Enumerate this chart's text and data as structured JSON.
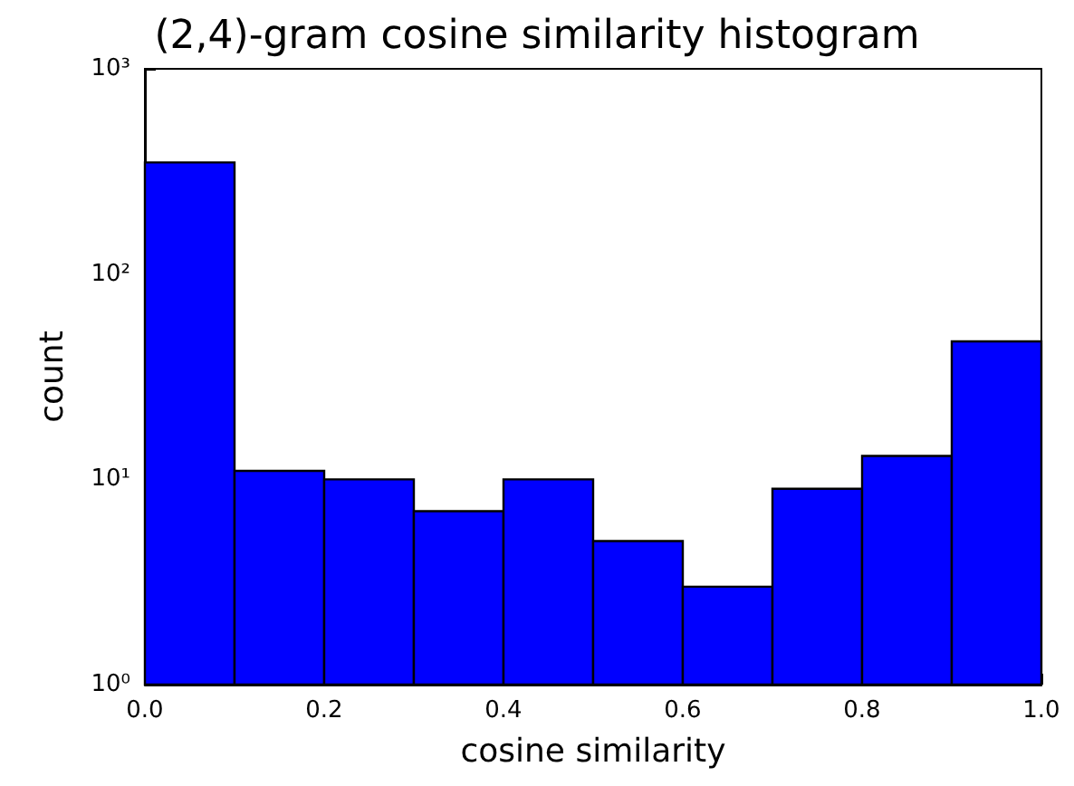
{
  "chart_data": {
    "type": "histogram",
    "title": "(2,4)-gram cosine similarity histogram",
    "xlabel": "cosine similarity",
    "ylabel": "count",
    "bins": [
      0,
      0.1,
      0.2,
      0.3,
      0.4,
      0.5,
      0.6,
      0.7,
      0.8,
      0.9,
      1.0
    ],
    "values": [
      350,
      11,
      10,
      7,
      10,
      5,
      3,
      9,
      13,
      47
    ],
    "color": "#0000ff",
    "log": "y",
    "grid": false,
    "xlim": [
      0,
      1
    ],
    "xticks": [
      {
        "value": 0,
        "label": "0.0"
      },
      {
        "value": 0.2,
        "label": "0.2"
      },
      {
        "value": 0.4,
        "label": "0.4"
      },
      {
        "value": 0.6,
        "label": "0.6"
      },
      {
        "value": 0.8,
        "label": "0.8"
      },
      {
        "value": 1,
        "label": "1.0"
      }
    ],
    "ylim": [
      1,
      1000
    ],
    "yticks": [
      {
        "value": 1,
        "label": "10⁰"
      },
      {
        "value": 10,
        "label": "10¹"
      },
      {
        "value": 100,
        "label": "10²"
      },
      {
        "value": 1000,
        "label": "10³"
      }
    ]
  }
}
